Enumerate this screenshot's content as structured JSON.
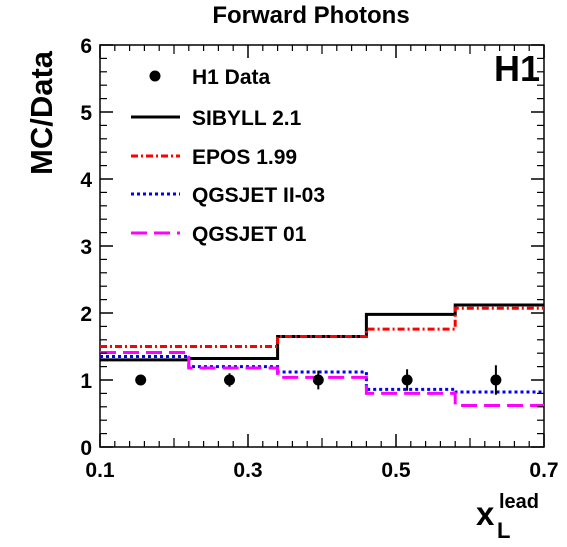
{
  "chart_data": {
    "type": "line",
    "title": "Forward Photons",
    "watermark": "H1",
    "ylabel": "MC/Data",
    "xlabel": {
      "main": "x",
      "sub": "L",
      "sup": "lead"
    },
    "xlim": [
      0.1,
      0.7
    ],
    "ylim": [
      0,
      6
    ],
    "x_ticks": [
      {
        "value": 0.1,
        "label": "0.1"
      },
      {
        "value": 0.3,
        "label": "0.3"
      },
      {
        "value": 0.5,
        "label": "0.5"
      },
      {
        "value": 0.7,
        "label": "0.7"
      }
    ],
    "y_ticks": [
      {
        "value": 0,
        "label": "0"
      },
      {
        "value": 1,
        "label": "1"
      },
      {
        "value": 2,
        "label": "2"
      },
      {
        "value": 3,
        "label": "3"
      },
      {
        "value": 4,
        "label": "4"
      },
      {
        "value": 5,
        "label": "5"
      },
      {
        "value": 6,
        "label": "6"
      }
    ],
    "bin_edges": [
      0.1,
      0.22,
      0.34,
      0.46,
      0.58,
      0.7
    ],
    "data_points": {
      "name": "H1 Data",
      "x": [
        0.155,
        0.275,
        0.395,
        0.515,
        0.635
      ],
      "y": [
        1.0,
        1.0,
        1.0,
        1.0,
        1.0
      ],
      "err": [
        0.07,
        0.1,
        0.14,
        0.16,
        0.22
      ]
    },
    "series": [
      {
        "name": "SIBYLL 2.1",
        "style": "solid",
        "color": "#000000",
        "values": [
          1.3,
          1.32,
          1.65,
          1.98,
          2.12
        ]
      },
      {
        "name": "EPOS 1.99",
        "style": "dashdot",
        "color": "#ff0000",
        "values": [
          1.5,
          1.5,
          1.65,
          1.76,
          2.07
        ]
      },
      {
        "name": "QGSJET II-03",
        "style": "dotted",
        "color": "#0000ff",
        "values": [
          1.35,
          1.2,
          1.12,
          0.86,
          0.82
        ]
      },
      {
        "name": "QGSJET 01",
        "style": "dashed",
        "color": "#ff00ff",
        "values": [
          1.41,
          1.18,
          1.04,
          0.8,
          0.62
        ]
      }
    ],
    "legend_position": "top-left",
    "grid": false
  }
}
